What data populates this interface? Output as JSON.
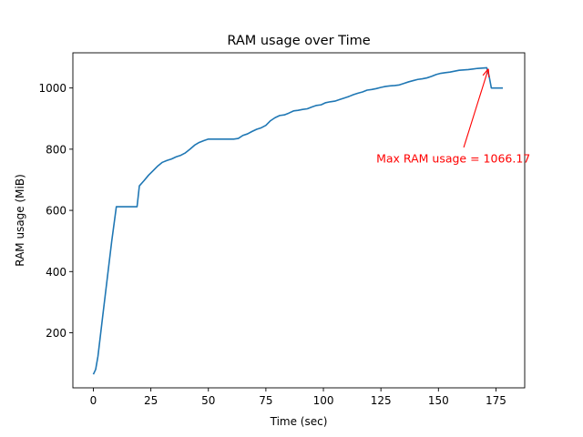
{
  "chart_data": {
    "type": "line",
    "title": "RAM usage over Time",
    "xlabel": "Time (sec)",
    "ylabel": "RAM usage (MiB)",
    "xlim": [
      -8.9,
      187.5
    ],
    "ylim": [
      20,
      1115
    ],
    "xticks": [
      0,
      25,
      50,
      75,
      100,
      125,
      150,
      175
    ],
    "yticks": [
      200,
      400,
      600,
      800,
      1000
    ],
    "grid": false,
    "line_color": "#1f77b4",
    "series": [
      {
        "x": [
          0,
          1,
          2,
          4,
          6,
          8,
          10,
          12,
          15,
          17,
          19,
          20,
          22,
          24,
          26,
          28,
          30,
          32,
          34,
          36,
          38,
          40,
          42,
          44,
          46,
          48,
          50,
          52,
          55,
          58,
          61,
          63,
          65,
          67,
          69,
          71,
          73,
          75,
          77,
          79,
          81,
          83,
          85,
          87,
          89,
          91,
          93,
          95,
          97,
          99,
          101,
          103,
          105,
          107,
          109,
          111,
          113,
          115,
          117,
          119,
          121,
          123,
          125,
          127,
          129,
          131,
          133,
          135,
          137,
          139,
          141,
          143,
          145,
          147,
          149,
          151,
          153,
          155,
          157,
          159,
          161,
          163,
          165,
          167,
          169,
          171,
          172,
          173,
          174,
          176,
          178
        ],
        "y": [
          64,
          80,
          123,
          250,
          375,
          500,
          612,
          612,
          612,
          612,
          612,
          680,
          697,
          715,
          730,
          745,
          757,
          763,
          768,
          775,
          780,
          788,
          800,
          813,
          822,
          828,
          833,
          833,
          833,
          833,
          833,
          835,
          845,
          850,
          858,
          865,
          870,
          878,
          893,
          903,
          910,
          912,
          918,
          925,
          927,
          930,
          932,
          938,
          943,
          945,
          952,
          955,
          957,
          962,
          967,
          972,
          978,
          983,
          987,
          993,
          995,
          998,
          1002,
          1005,
          1007,
          1008,
          1010,
          1015,
          1020,
          1024,
          1028,
          1030,
          1033,
          1038,
          1044,
          1048,
          1050,
          1052,
          1055,
          1058,
          1059,
          1060,
          1062,
          1064,
          1065,
          1066.17,
          1040,
          1000,
          1000,
          1000,
          1000
        ]
      }
    ],
    "annotation": {
      "text": "Max RAM usage = 1066.17",
      "color": "#ff0000",
      "point": [
        172,
        1066.17
      ],
      "text_pos": [
        123,
        770
      ]
    }
  }
}
